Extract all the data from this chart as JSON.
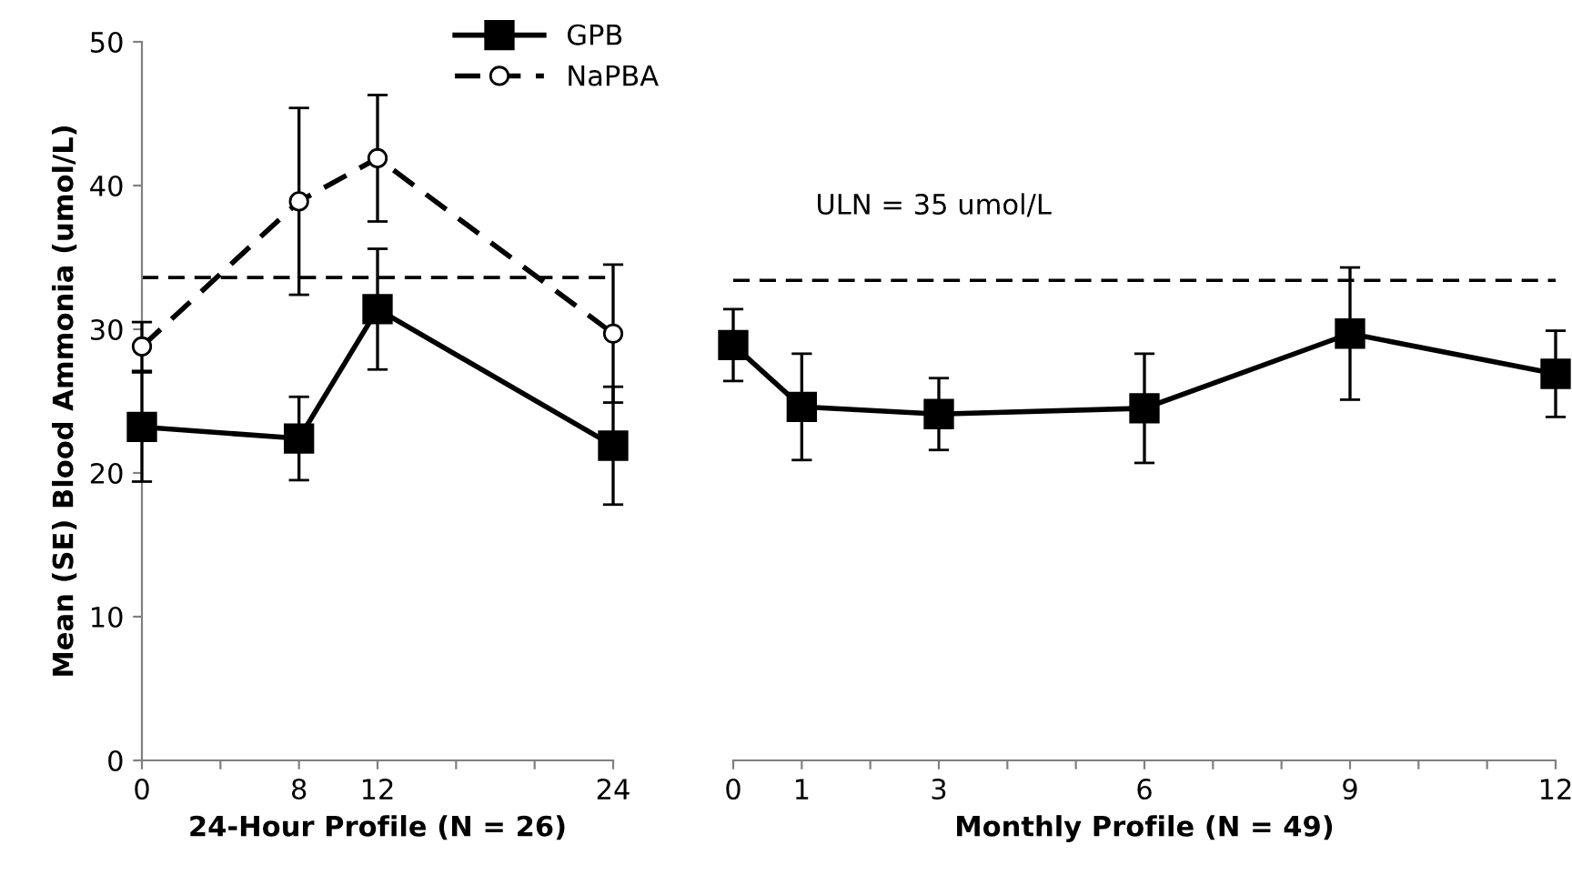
{
  "chart_data": [
    {
      "type": "line",
      "xlabel": "24-Hour Profile (N = 26)",
      "ylabel": "Mean (SE) Blood Ammonia (umol/L)",
      "x": [
        0,
        8,
        12,
        24
      ],
      "xlim": [
        0,
        24
      ],
      "xticks": [
        0,
        {
          "value": 4,
          "label": null
        },
        8,
        12,
        {
          "value": 16,
          "label": null
        },
        {
          "value": 20,
          "label": null
        },
        24
      ],
      "ylim": [
        0,
        50
      ],
      "yticks": [
        0,
        10,
        20,
        30,
        40,
        50
      ],
      "series": [
        {
          "name": "GPB",
          "color": "#000000",
          "marker": "square",
          "line_style": "solid",
          "values": [
            23.2,
            22.4,
            31.4,
            21.9
          ],
          "errors": [
            3.8,
            2.9,
            4.2,
            4.1
          ]
        },
        {
          "name": "NaPBA",
          "color": "#000000",
          "marker": "circle",
          "line_style": "dashed",
          "values": [
            28.8,
            38.9,
            41.9,
            29.7
          ],
          "errors": [
            1.7,
            6.5,
            4.4,
            4.8
          ]
        }
      ],
      "ref_lines": [
        {
          "axis": "y",
          "value": 33.6,
          "line_style": "dashed"
        }
      ],
      "legend": "top right",
      "grid": false
    },
    {
      "type": "line",
      "xlabel": "Monthly Profile (N = 49)",
      "x": [
        0,
        1,
        3,
        6,
        9,
        12
      ],
      "xlim": [
        0,
        12
      ],
      "xticks": [
        0,
        1,
        {
          "value": 2,
          "label": null
        },
        3,
        {
          "value": 4,
          "label": null
        },
        {
          "value": 5,
          "label": null
        },
        6,
        {
          "value": 7,
          "label": null
        },
        {
          "value": 8,
          "label": null
        },
        9,
        {
          "value": 10,
          "label": null
        },
        {
          "value": 11,
          "label": null
        },
        12
      ],
      "ylim": [
        0,
        50
      ],
      "tick_labels": "x",
      "series": [
        {
          "color": "#000000",
          "marker": "square",
          "line_style": "solid",
          "values": [
            28.9,
            24.6,
            24.1,
            24.5,
            29.7,
            26.9
          ],
          "errors": [
            2.5,
            3.7,
            2.5,
            3.8,
            4.6,
            3.0
          ]
        }
      ],
      "ref_lines": [
        {
          "axis": "y",
          "value": 33.4,
          "line_style": "dashed"
        }
      ],
      "annotations": [
        "ULN = 35 umol/L"
      ],
      "grid": false
    }
  ]
}
